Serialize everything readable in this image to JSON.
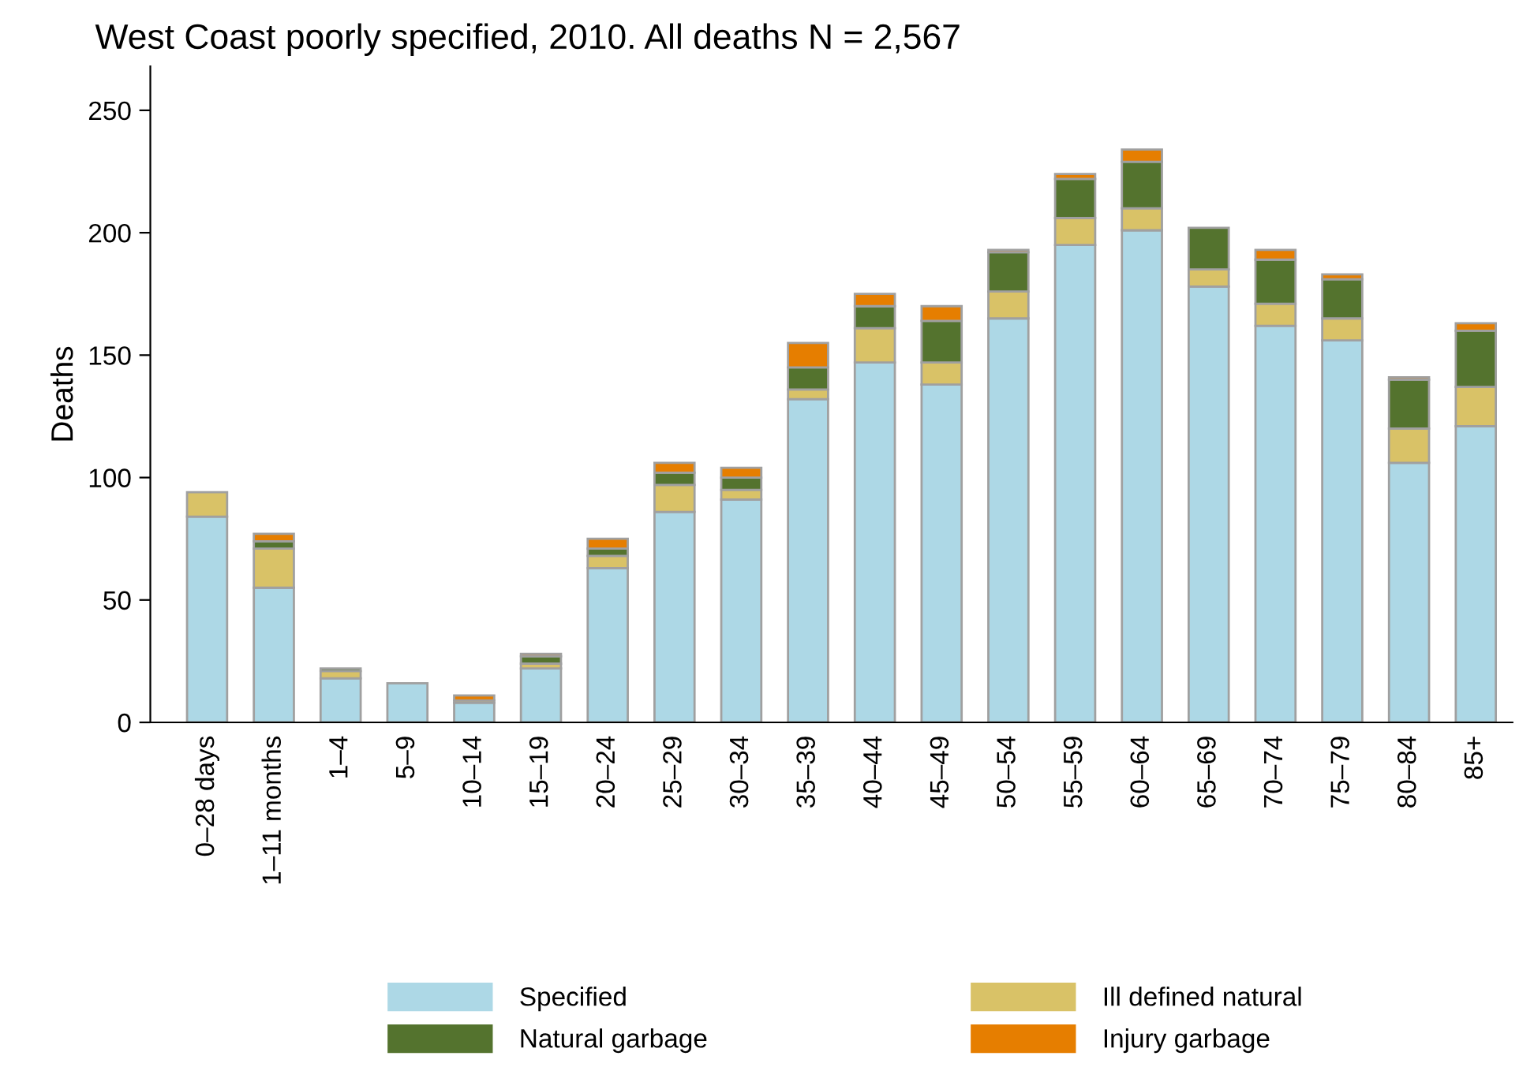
{
  "chart_data": {
    "type": "bar",
    "stacked": true,
    "title": "West Coast poorly specified, 2010. All deaths N = 2,567",
    "ylabel": "Deaths",
    "categories": [
      "0–28 days",
      "1–11 months",
      "1–4",
      "5–9",
      "10–14",
      "15–19",
      "20–24",
      "25–29",
      "30–34",
      "35–39",
      "40–44",
      "45–49",
      "50–54",
      "55–59",
      "60–64",
      "65–69",
      "70–74",
      "75–79",
      "80–84",
      "85+"
    ],
    "series": [
      {
        "name": "Specified",
        "color": "#add8e6",
        "values": [
          84,
          55,
          18,
          16,
          8,
          22,
          63,
          86,
          91,
          132,
          147,
          138,
          165,
          195,
          201,
          178,
          162,
          156,
          106,
          121
        ]
      },
      {
        "name": "Ill defined natural",
        "color": "#d9c267",
        "values": [
          10,
          16,
          3,
          0,
          1,
          2,
          5,
          11,
          4,
          4,
          14,
          9,
          11,
          11,
          9,
          7,
          9,
          9,
          14,
          16
        ]
      },
      {
        "name": "Natural garbage",
        "color": "#54732e",
        "values": [
          0,
          3,
          1,
          0,
          0,
          3,
          3,
          5,
          5,
          9,
          9,
          17,
          16,
          16,
          19,
          17,
          18,
          16,
          20,
          23
        ]
      },
      {
        "name": "Injury garbage",
        "color": "#e67e00",
        "values": [
          0,
          3,
          0,
          0,
          2,
          1,
          4,
          4,
          4,
          10,
          5,
          6,
          1,
          2,
          5,
          0,
          4,
          2,
          1,
          3
        ]
      }
    ],
    "ylim": [
      0,
      268
    ],
    "yticks": [
      0,
      50,
      100,
      150,
      200,
      250
    ],
    "grid": false,
    "legend": "bottom"
  }
}
